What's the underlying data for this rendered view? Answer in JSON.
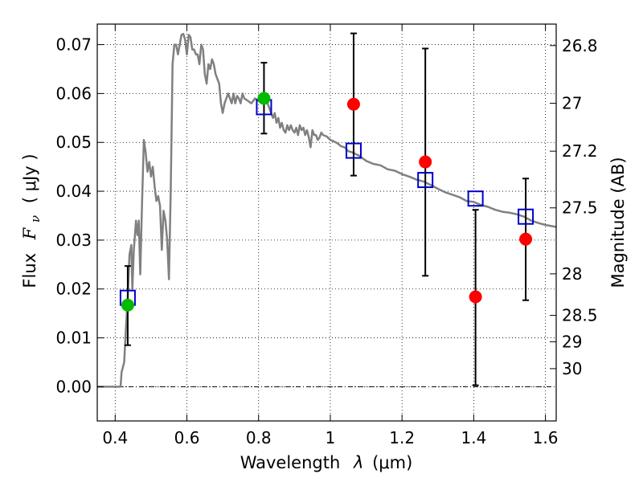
{
  "chart_data": {
    "type": "scatter",
    "xlabel_text": "Wavelength",
    "xlabel_symbol": "λ",
    "xlabel_unit": "(μm)",
    "ylabel_text": "Flux",
    "ylabel_symbol": "F",
    "ylabel_subscript": "ν",
    "ylabel_unit": "( μJy )",
    "y2label": "Magnitude (AB)",
    "xlim": [
      0.35,
      1.63
    ],
    "ylim": [
      -0.007,
      0.0742
    ],
    "grid": true,
    "x_ticks": [
      {
        "value": 0.4,
        "label": "0.4"
      },
      {
        "value": 0.6,
        "label": "0.6"
      },
      {
        "value": 0.8,
        "label": "0.8"
      },
      {
        "value": 1.0,
        "label": "1"
      },
      {
        "value": 1.2,
        "label": "1.2"
      },
      {
        "value": 1.4,
        "label": "1.4"
      },
      {
        "value": 1.6,
        "label": "1.6"
      }
    ],
    "y_ticks": [
      {
        "value": 0.0,
        "label": "0.00"
      },
      {
        "value": 0.01,
        "label": "0.01"
      },
      {
        "value": 0.02,
        "label": "0.02"
      },
      {
        "value": 0.03,
        "label": "0.03"
      },
      {
        "value": 0.04,
        "label": "0.04"
      },
      {
        "value": 0.05,
        "label": "0.05"
      },
      {
        "value": 0.06,
        "label": "0.06"
      },
      {
        "value": 0.07,
        "label": "0.07"
      }
    ],
    "y2_ticks": [
      {
        "flux": 0.0698,
        "label": "26.8"
      },
      {
        "flux": 0.058,
        "label": "27"
      },
      {
        "flux": 0.0482,
        "label": "27.2"
      },
      {
        "flux": 0.0366,
        "label": "27.5"
      },
      {
        "flux": 0.0231,
        "label": "28"
      },
      {
        "flux": 0.0146,
        "label": "28.5"
      },
      {
        "flux": 0.0092,
        "label": "29"
      },
      {
        "flux": 0.0037,
        "label": "30"
      }
    ],
    "model_curve": {
      "color": "#808080",
      "points": [
        [
          0.35,
          0.0
        ],
        [
          0.415,
          0.0
        ],
        [
          0.418,
          0.003
        ],
        [
          0.425,
          0.005
        ],
        [
          0.43,
          0.012
        ],
        [
          0.435,
          0.018
        ],
        [
          0.44,
          0.027
        ],
        [
          0.445,
          0.029
        ],
        [
          0.448,
          0.02
        ],
        [
          0.452,
          0.028
        ],
        [
          0.458,
          0.034
        ],
        [
          0.462,
          0.031
        ],
        [
          0.466,
          0.034
        ],
        [
          0.47,
          0.023
        ],
        [
          0.475,
          0.038
        ],
        [
          0.48,
          0.0505
        ],
        [
          0.485,
          0.048
        ],
        [
          0.49,
          0.044
        ],
        [
          0.495,
          0.046
        ],
        [
          0.5,
          0.043
        ],
        [
          0.505,
          0.045
        ],
        [
          0.51,
          0.041
        ],
        [
          0.515,
          0.038
        ],
        [
          0.52,
          0.039
        ],
        [
          0.525,
          0.037
        ],
        [
          0.53,
          0.028
        ],
        [
          0.535,
          0.036
        ],
        [
          0.54,
          0.034
        ],
        [
          0.545,
          0.03
        ],
        [
          0.55,
          0.022
        ],
        [
          0.555,
          0.04
        ],
        [
          0.56,
          0.066
        ],
        [
          0.565,
          0.07
        ],
        [
          0.57,
          0.07
        ],
        [
          0.575,
          0.068
        ],
        [
          0.58,
          0.07
        ],
        [
          0.585,
          0.072
        ],
        [
          0.59,
          0.0722
        ],
        [
          0.595,
          0.071
        ],
        [
          0.6,
          0.068
        ],
        [
          0.605,
          0.072
        ],
        [
          0.61,
          0.0715
        ],
        [
          0.615,
          0.069
        ],
        [
          0.62,
          0.069
        ],
        [
          0.625,
          0.068
        ],
        [
          0.63,
          0.068
        ],
        [
          0.635,
          0.066
        ],
        [
          0.64,
          0.07
        ],
        [
          0.645,
          0.069
        ],
        [
          0.65,
          0.064
        ],
        [
          0.655,
          0.062
        ],
        [
          0.66,
          0.066
        ],
        [
          0.665,
          0.065
        ],
        [
          0.67,
          0.067
        ],
        [
          0.675,
          0.066
        ],
        [
          0.68,
          0.064
        ],
        [
          0.685,
          0.063
        ],
        [
          0.69,
          0.062
        ],
        [
          0.695,
          0.058
        ],
        [
          0.7,
          0.056
        ],
        [
          0.705,
          0.058
        ],
        [
          0.71,
          0.059
        ],
        [
          0.715,
          0.06
        ],
        [
          0.72,
          0.059
        ],
        [
          0.725,
          0.058
        ],
        [
          0.73,
          0.06
        ],
        [
          0.735,
          0.058
        ],
        [
          0.74,
          0.0595
        ],
        [
          0.745,
          0.059
        ],
        [
          0.75,
          0.058
        ],
        [
          0.755,
          0.06
        ],
        [
          0.76,
          0.059
        ],
        [
          0.77,
          0.0585
        ],
        [
          0.78,
          0.058
        ],
        [
          0.79,
          0.059
        ],
        [
          0.8,
          0.0585
        ],
        [
          0.81,
          0.058
        ],
        [
          0.82,
          0.059
        ],
        [
          0.83,
          0.057
        ],
        [
          0.84,
          0.055
        ],
        [
          0.845,
          0.056
        ],
        [
          0.85,
          0.054
        ],
        [
          0.855,
          0.055
        ],
        [
          0.86,
          0.053
        ],
        [
          0.865,
          0.054
        ],
        [
          0.87,
          0.0525
        ],
        [
          0.875,
          0.052
        ],
        [
          0.88,
          0.0535
        ],
        [
          0.885,
          0.0525
        ],
        [
          0.89,
          0.0535
        ],
        [
          0.895,
          0.0525
        ],
        [
          0.9,
          0.052
        ],
        [
          0.905,
          0.053
        ],
        [
          0.91,
          0.0515
        ],
        [
          0.915,
          0.0535
        ],
        [
          0.92,
          0.0525
        ],
        [
          0.925,
          0.053
        ],
        [
          0.93,
          0.0515
        ],
        [
          0.935,
          0.0525
        ],
        [
          0.94,
          0.051
        ],
        [
          0.945,
          0.049
        ],
        [
          0.95,
          0.0525
        ],
        [
          0.955,
          0.0515
        ],
        [
          0.96,
          0.0515
        ],
        [
          0.965,
          0.0505
        ],
        [
          0.97,
          0.051
        ],
        [
          0.975,
          0.052
        ],
        [
          0.98,
          0.0515
        ],
        [
          0.99,
          0.0512
        ],
        [
          1.0,
          0.0505
        ],
        [
          1.01,
          0.0502
        ],
        [
          1.02,
          0.0498
        ],
        [
          1.03,
          0.0492
        ],
        [
          1.04,
          0.049
        ],
        [
          1.05,
          0.0482
        ],
        [
          1.06,
          0.048
        ],
        [
          1.08,
          0.0473
        ],
        [
          1.1,
          0.0462
        ],
        [
          1.12,
          0.0456
        ],
        [
          1.14,
          0.0453
        ],
        [
          1.16,
          0.0445
        ],
        [
          1.18,
          0.0442
        ],
        [
          1.2,
          0.0435
        ],
        [
          1.22,
          0.043
        ],
        [
          1.24,
          0.0424
        ],
        [
          1.26,
          0.042
        ],
        [
          1.28,
          0.0413
        ],
        [
          1.3,
          0.0405
        ],
        [
          1.32,
          0.0398
        ],
        [
          1.34,
          0.0393
        ],
        [
          1.36,
          0.0388
        ],
        [
          1.38,
          0.038
        ],
        [
          1.4,
          0.0378
        ],
        [
          1.42,
          0.0372
        ],
        [
          1.44,
          0.0368
        ],
        [
          1.46,
          0.0362
        ],
        [
          1.48,
          0.0358
        ],
        [
          1.5,
          0.0356
        ],
        [
          1.52,
          0.0353
        ],
        [
          1.54,
          0.0348
        ],
        [
          1.56,
          0.034
        ],
        [
          1.58,
          0.0335
        ],
        [
          1.6,
          0.0331
        ],
        [
          1.63,
          0.0327
        ]
      ]
    },
    "model_bands": {
      "marker": "open-square",
      "color": "#0000cc",
      "points": [
        [
          0.435,
          0.0182
        ],
        [
          0.815,
          0.0572
        ],
        [
          1.065,
          0.0483
        ],
        [
          1.265,
          0.0423
        ],
        [
          1.405,
          0.0385
        ],
        [
          1.545,
          0.0348
        ]
      ]
    },
    "detections": {
      "marker": "filled-circle",
      "color": "#00bb00",
      "points": [
        {
          "x": 0.435,
          "y": 0.0167,
          "err_lo": 0.0085,
          "err_hi": 0.0247
        },
        {
          "x": 0.815,
          "y": 0.059,
          "err_lo": 0.0518,
          "err_hi": 0.0663
        }
      ]
    },
    "upper_limits": {
      "marker": "filled-circle",
      "color": "#ff0000",
      "points": [
        {
          "x": 1.065,
          "y": 0.0578,
          "err_lo": 0.0432,
          "err_hi": 0.0723
        },
        {
          "x": 1.265,
          "y": 0.046,
          "err_lo": 0.0227,
          "err_hi": 0.0692
        },
        {
          "x": 1.405,
          "y": 0.0184,
          "err_lo": 0.0003,
          "err_hi": 0.0362
        },
        {
          "x": 1.545,
          "y": 0.0302,
          "err_lo": 0.0177,
          "err_hi": 0.0426
        }
      ]
    }
  }
}
